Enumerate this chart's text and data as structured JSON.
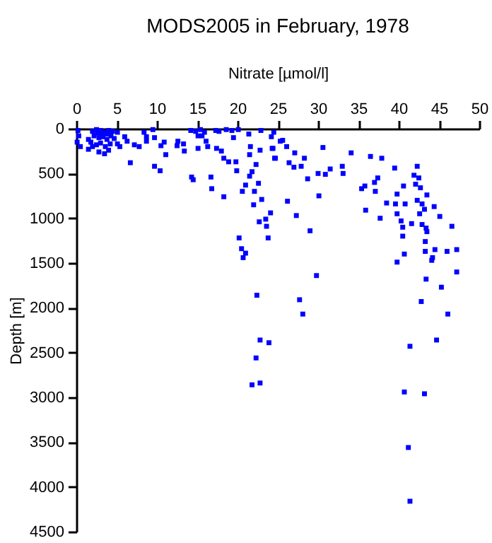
{
  "chart_data": {
    "type": "scatter",
    "title": "MODS2005 in February, 1978",
    "xlabel": "Nitrate [µmol/l]",
    "ylabel": "Depth [m]",
    "xlim": [
      0,
      50
    ],
    "xticks": [
      0,
      5,
      10,
      15,
      20,
      25,
      30,
      35,
      40,
      45,
      50
    ],
    "ylim": [
      4500,
      0
    ],
    "yticks": [
      0,
      500,
      1000,
      1500,
      2000,
      2500,
      3000,
      3500,
      4000,
      4500
    ],
    "marker": "square",
    "series": [
      {
        "color": "#0000ff",
        "x": [
          0.2,
          0.3,
          0.1,
          0.5,
          1.5,
          2,
          2.5,
          3,
          3.5,
          4,
          4.5,
          2.2,
          2.8,
          3.3,
          3.8,
          4.3,
          1.8,
          2.5,
          3,
          3.6,
          4.2,
          2.8,
          3.5,
          4.7,
          1.5,
          2,
          4,
          3.2,
          2.6,
          3.9,
          5.1,
          5.1,
          5.4,
          6.0,
          6.3,
          6.7,
          7.2,
          7.8,
          8.4,
          8.7,
          8.7,
          9.5,
          9.7,
          9.7,
          10.4,
          10.5,
          10.9,
          11.1,
          12.5,
          12.6,
          13.3,
          13.4,
          14.2,
          14.3,
          14.5,
          14.8,
          15.1,
          15.4,
          15.1,
          15.6,
          15.9,
          16.1,
          16.3,
          16.7,
          16.8,
          17.3,
          17.7,
          17.4,
          18.0,
          18.3,
          18.6,
          18.3,
          18.9,
          19.3,
          19.5,
          19.8,
          20.1,
          19.9,
          20.2,
          20.6,
          20.5,
          21.0,
          21.0,
          21.4,
          21.5,
          21.6,
          21.5,
          21.8,
          22.0,
          22.1,
          22.3,
          22.6,
          22.7,
          22.8,
          22.9,
          23.0,
          23.5,
          23.6,
          23.8,
          24.1,
          24.3,
          24.7,
          24.5,
          24.2,
          24.4,
          25.3,
          25.6,
          26.1,
          24.6,
          27.1,
          28.3,
          26.4,
          27.0,
          27.9,
          28.7,
          30.6,
          30.0,
          30.9,
          31.5,
          33.0,
          33.1,
          34.1,
          26.2,
          27.3,
          29.0,
          30.1,
          36.5,
          37.9,
          39.5,
          35.4,
          35.8,
          37.0,
          37.4,
          37.1,
          38.5,
          35.9,
          37.7,
          40.6,
          39.8,
          39.6,
          40.8,
          39.8,
          40.3,
          40.5,
          41.6,
          40.5,
          42.3,
          41.9,
          42.5,
          42.1,
          42.7,
          43.5,
          42.3,
          42.9,
          43.2,
          42.6,
          44.4,
          45.1,
          42.9,
          43.4,
          43.5,
          43.3,
          43.3,
          44.5,
          44.1,
          46.0,
          47.2,
          46.6,
          20.7,
          22.4,
          27.7,
          28.1,
          29.8,
          22.8,
          23.9,
          22.3,
          21.8,
          22.8,
          39.8,
          40.7,
          44.2,
          47.2,
          43.4,
          45.3,
          42.8,
          46.1,
          41.4,
          44.7,
          40.7,
          43.2,
          41.2,
          41.4
        ],
        "values": [
          20,
          80,
          150,
          200,
          230,
          30,
          10,
          20,
          40,
          20,
          30,
          80,
          100,
          90,
          120,
          80,
          150,
          180,
          160,
          200,
          170,
          260,
          280,
          110,
          120,
          200,
          240,
          60,
          50,
          60,
          40,
          170,
          200,
          90,
          140,
          380,
          180,
          200,
          40,
          90,
          140,
          10,
          100,
          420,
          470,
          190,
          150,
          290,
          190,
          140,
          170,
          250,
          20,
          540,
          570,
          30,
          80,
          10,
          220,
          80,
          40,
          140,
          200,
          540,
          670,
          20,
          30,
          220,
          250,
          330,
          10,
          760,
          370,
          20,
          100,
          370,
          10,
          470,
          1220,
          700,
          1340,
          1390,
          630,
          60,
          290,
          200,
          530,
          480,
          850,
          700,
          400,
          610,
          1040,
          240,
          20,
          790,
          1010,
          1090,
          1220,
          940,
          220,
          330,
          40,
          90,
          220,
          140,
          130,
          200,
          330,
          270,
          330,
          380,
          430,
          420,
          560,
          210,
          500,
          510,
          450,
          420,
          500,
          270,
          810,
          970,
          1140,
          750,
          310,
          330,
          440,
          670,
          640,
          600,
          550,
          700,
          830,
          910,
          1000,
          640,
          730,
          840,
          840,
          950,
          1030,
          1100,
          1060,
          1200,
          420,
          520,
          550,
          620,
          660,
          740,
          800,
          840,
          900,
          950,
          870,
          980,
          1070,
          1110,
          1150,
          1260,
          1370,
          1350,
          1470,
          1370,
          1350,
          1090,
          1440,
          1860,
          1910,
          2070,
          1640,
          2360,
          2390,
          2560,
          2860,
          2840,
          1490,
          1400,
          1440,
          1600,
          1680,
          1770,
          1930,
          2070,
          2430,
          2360,
          2940,
          2960,
          3560,
          4160
        ]
      }
    ]
  }
}
